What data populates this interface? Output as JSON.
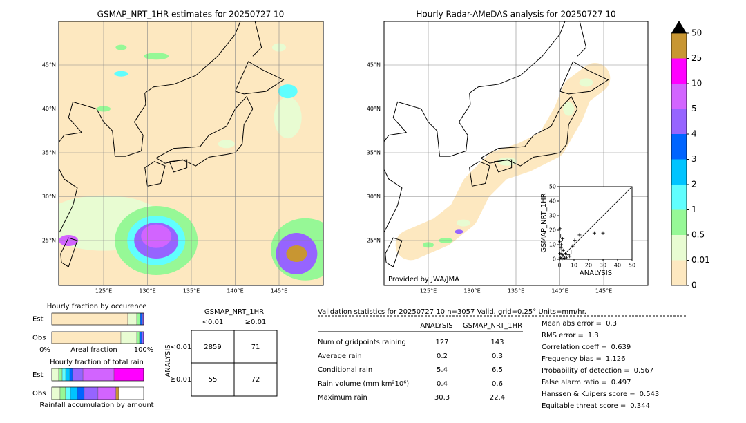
{
  "maps": [
    {
      "title": "GSMAP_NRT_1HR estimates for 20250727 10",
      "lat_labels": [
        "45°N",
        "40°N",
        "35°N",
        "30°N",
        "25°N"
      ],
      "lon_labels": [
        "125°E",
        "130°E",
        "135°E",
        "140°E",
        "145°E"
      ]
    },
    {
      "title": "Hourly Radar-AMeDAS analysis for 20250727 10",
      "lat_labels": [
        "45°N",
        "40°N",
        "35°N",
        "30°N",
        "25°N"
      ],
      "lon_labels": [
        "125°E",
        "130°E",
        "135°E",
        "140°E",
        "145°E"
      ],
      "credit": "Provided by JWA/JMA"
    }
  ],
  "colorbar": {
    "ticks": [
      0,
      0.01,
      0.5,
      1,
      2,
      3,
      4,
      5,
      10,
      25,
      50
    ],
    "colors": [
      "#fde8c0",
      "#e8fcd2",
      "#96f896",
      "#60fefe",
      "#00c4ff",
      "#0064ff",
      "#9664ff",
      "#d264ff",
      "#ff00ff",
      "#c89632"
    ],
    "over_color": "#000000"
  },
  "chart_data": {
    "type": "scatter",
    "xlabel": "ANALYSIS",
    "ylabel": "GSMAP_NRT_1HR",
    "xlim": [
      0,
      50
    ],
    "ylim": [
      0,
      50
    ],
    "xticks": [
      0,
      10,
      20,
      30,
      40,
      50
    ],
    "yticks": [
      0,
      10,
      20,
      30,
      40,
      50
    ],
    "color": "#000000",
    "x": [
      0.5,
      0.8,
      1,
      1.5,
      2,
      2.5,
      3,
      0.3,
      1.2,
      4,
      5,
      6,
      7,
      8,
      10.5,
      13.8,
      24,
      30,
      0.6,
      1.8,
      3.5,
      9,
      2.2,
      0.4
    ],
    "y": [
      21,
      16,
      8,
      5,
      3,
      6,
      2,
      12,
      10,
      4,
      1,
      3,
      2,
      5,
      13,
      16.7,
      18,
      18,
      1,
      0.5,
      0.8,
      9,
      14,
      4
    ]
  },
  "occurrence": {
    "title": "Hourly fraction by occurence",
    "rows": [
      {
        "label": "Est",
        "values": [
          82.7,
          9.8,
          3.8,
          2.3,
          1.4
        ]
      },
      {
        "label": "Obs",
        "values": [
          75.2,
          17.3,
          3.0,
          2.3,
          2.2
        ]
      }
    ],
    "colors": [
      "#fde8c0",
      "#e8fcd2",
      "#96f896",
      "#0064ff",
      "#9664ff"
    ],
    "axis_left": "0%",
    "axis_label": "Areal fraction",
    "axis_right": "100%"
  },
  "total_rain": {
    "title": "Hourly fraction of total rain",
    "rows": [
      {
        "label": "Est",
        "values": [
          7.5,
          3.8,
          3.8,
          4.5,
          3.0,
          11.3,
          33.8,
          32.3,
          0
        ]
      },
      {
        "label": "Obs",
        "values": [
          9.0,
          6.0,
          5.3,
          7.5,
          7.5,
          15.0,
          19.5,
          0,
          3.0
        ]
      }
    ],
    "colors": [
      "#e8fcd2",
      "#96f896",
      "#60fefe",
      "#00c4ff",
      "#0064ff",
      "#9664ff",
      "#d264ff",
      "#ff00ff",
      "#c89632"
    ],
    "footer": "Rainfall accumulation by amount"
  },
  "contingency": {
    "title": "GSMAP_NRT_1HR",
    "col_labels": [
      "<0.01",
      "≥0.01"
    ],
    "row_title": "ANALYSIS",
    "row_labels": [
      "<0.01",
      "≥0.01"
    ],
    "cells": [
      [
        2859,
        71
      ],
      [
        55,
        72
      ]
    ]
  },
  "validation": {
    "header": "Validation statistics for 20250727 10  n=3057 Valid. grid=0.25° Units=mm/hr.",
    "columns": [
      "ANALYSIS",
      "GSMAP_NRT_1HR"
    ],
    "rows": [
      {
        "label": "Num of gridpoints raining",
        "values": [
          127,
          143
        ]
      },
      {
        "label": "Average rain",
        "values": [
          0.2,
          0.3
        ]
      },
      {
        "label": "Conditional rain",
        "values": [
          5.4,
          6.5
        ]
      },
      {
        "label": "Rain volume (mm km²10⁶)",
        "values": [
          0.4,
          0.6
        ]
      },
      {
        "label": "Maximum rain",
        "values": [
          30.3,
          22.4
        ]
      }
    ],
    "scores": [
      {
        "label": "Mean abs error =",
        "value": 0.3
      },
      {
        "label": "RMS error =",
        "value": 1.3
      },
      {
        "label": "Correlation coeff =",
        "value": 0.639
      },
      {
        "label": "Frequency bias =",
        "value": 1.126
      },
      {
        "label": "Probability of detection =",
        "value": 0.567
      },
      {
        "label": "False alarm ratio =",
        "value": 0.497
      },
      {
        "label": "Hanssen & Kuipers score =",
        "value": 0.543
      },
      {
        "label": "Equitable threat score =",
        "value": 0.344
      }
    ]
  }
}
